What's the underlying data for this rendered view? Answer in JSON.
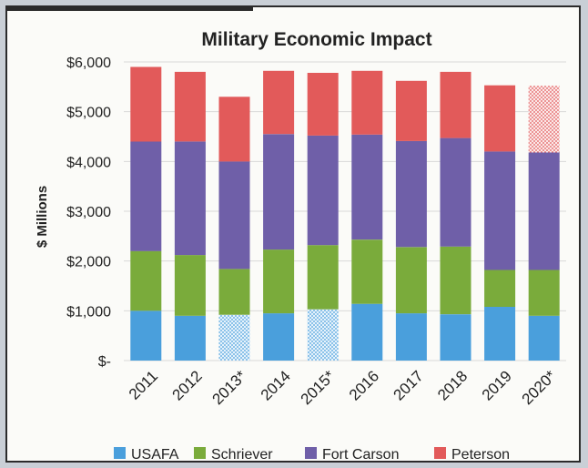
{
  "chart_data": {
    "type": "bar",
    "stacked": true,
    "title": "Military Economic Impact",
    "ylabel": "$ Millions",
    "xlabel": "",
    "ylim": [
      0,
      6000
    ],
    "yticks": [
      0,
      1000,
      2000,
      3000,
      4000,
      5000,
      6000
    ],
    "ytick_labels": [
      "$-",
      "$1,000",
      "$2,000",
      "$3,000",
      "$4,000",
      "$5,000",
      "$6,000"
    ],
    "categories": [
      "2011",
      "2012",
      "2013*",
      "2014",
      "2015*",
      "2016",
      "2017",
      "2018",
      "2019",
      "2020*"
    ],
    "series": [
      {
        "name": "USAFA",
        "color": "#4a9fdc",
        "values": [
          1000,
          900,
          920,
          950,
          1030,
          1140,
          950,
          930,
          1080,
          900
        ],
        "hatched": [
          "2013*",
          "2015*"
        ]
      },
      {
        "name": "Schriever",
        "color": "#7aab3b",
        "values": [
          1200,
          1220,
          920,
          1280,
          1290,
          1290,
          1330,
          1360,
          740,
          920
        ],
        "hatched": []
      },
      {
        "name": "Fort Carson",
        "color": "#6f5fa8",
        "values": [
          2200,
          2280,
          2160,
          2320,
          2200,
          2110,
          2130,
          2180,
          2380,
          2360
        ],
        "hatched": []
      },
      {
        "name": "Peterson",
        "color": "#e25a5a",
        "values": [
          1500,
          1400,
          1300,
          1270,
          1260,
          1280,
          1210,
          1330,
          1330,
          1340
        ],
        "hatched": [
          "2020*"
        ]
      }
    ],
    "legend_position": "bottom",
    "grid": true
  }
}
